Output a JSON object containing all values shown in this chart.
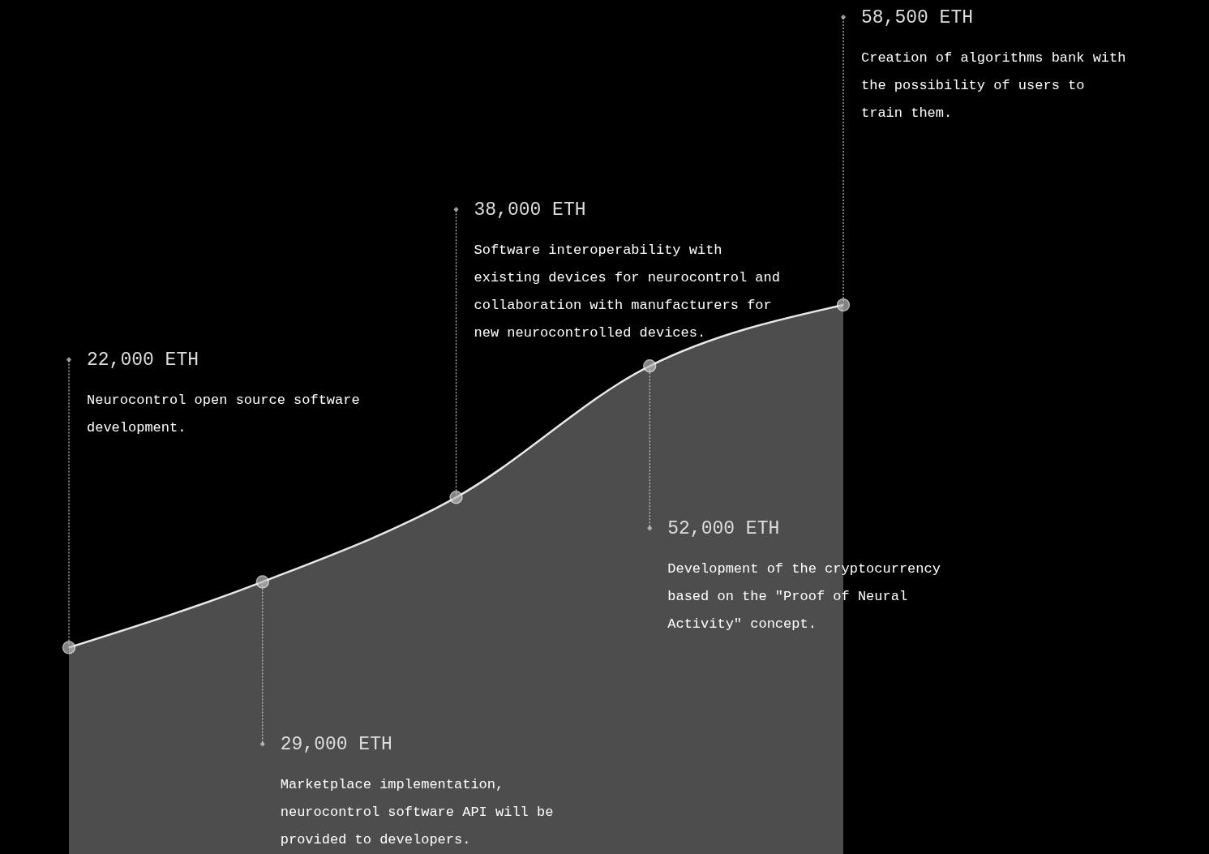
{
  "chart_data": {
    "type": "area",
    "categories": [
      null,
      null,
      null,
      null,
      null
    ],
    "series": [
      {
        "color": "#555555",
        "values": [
          22000,
          29000,
          38000,
          52000,
          58500
        ],
        "value_labels": [
          "22,000 ETH",
          "29,000 ETH",
          "38,000 ETH",
          "52,000 ETH",
          "58,500 ETH"
        ]
      }
    ],
    "ylim": [
      0,
      91000
    ],
    "tick_labels": false,
    "marker": "circle",
    "line_style": "solid",
    "annotations": [
      "Neurocontrol open source software development.",
      "Marketplace implementation, neurocontrol software API will be provided to developers.",
      "Software interoperability with existing devices for neurocontrol and collaboration with manufacturers for new neurocontrolled devices.",
      "Development of the cryptocurrency based on the \"Proof of Neural Activity\" concept.",
      "Creation of algorithms bank with the possibility of users to train them."
    ]
  }
}
